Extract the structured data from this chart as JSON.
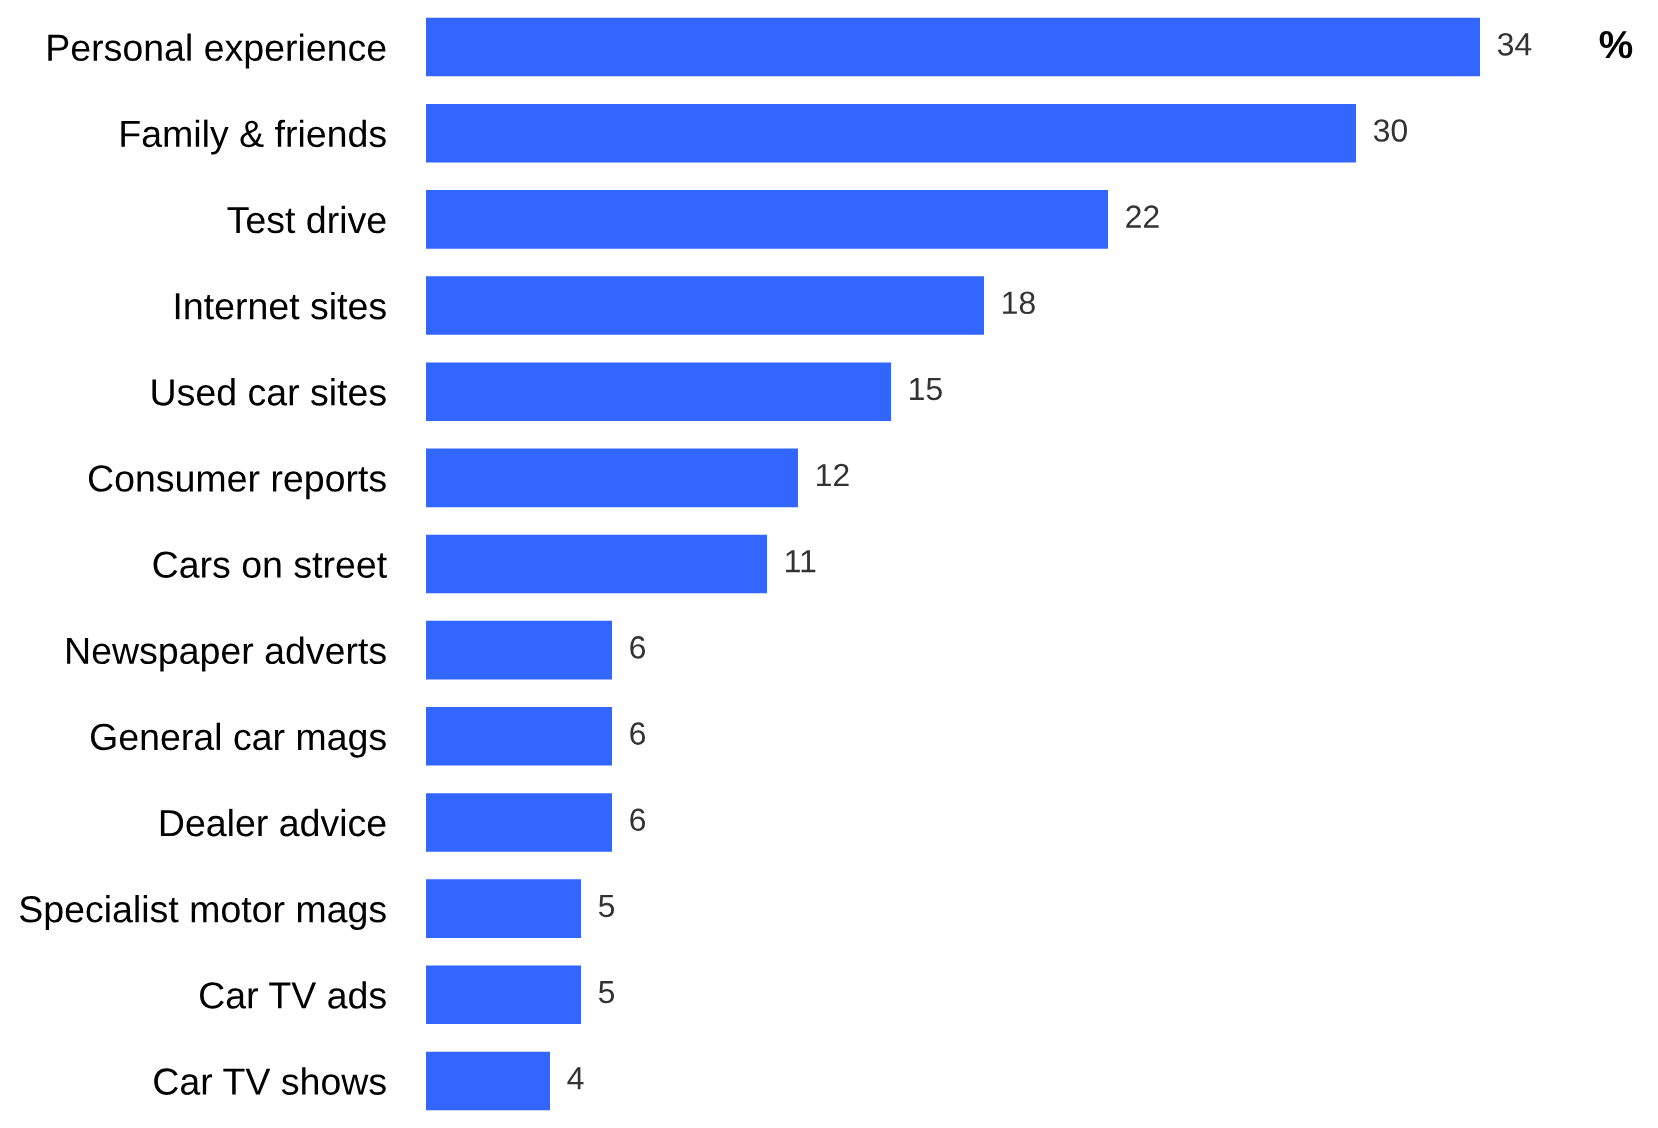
{
  "chart_data": {
    "type": "bar",
    "orientation": "horizontal",
    "categories": [
      "Personal experience",
      "Family & friends",
      "Test drive",
      "Internet sites",
      "Used car sites",
      "Consumer reports",
      "Cars on street",
      "Newspaper adverts",
      "General car mags",
      "Dealer advice",
      "Specialist motor mags",
      "Car TV ads",
      "Car TV shows"
    ],
    "values": [
      34,
      30,
      22,
      18,
      15,
      12,
      11,
      6,
      6,
      6,
      5,
      5,
      4
    ],
    "color": "#3366ff",
    "data_labels": true,
    "grid": false,
    "tick_labels": "y",
    "annotations": [
      "%"
    ]
  }
}
